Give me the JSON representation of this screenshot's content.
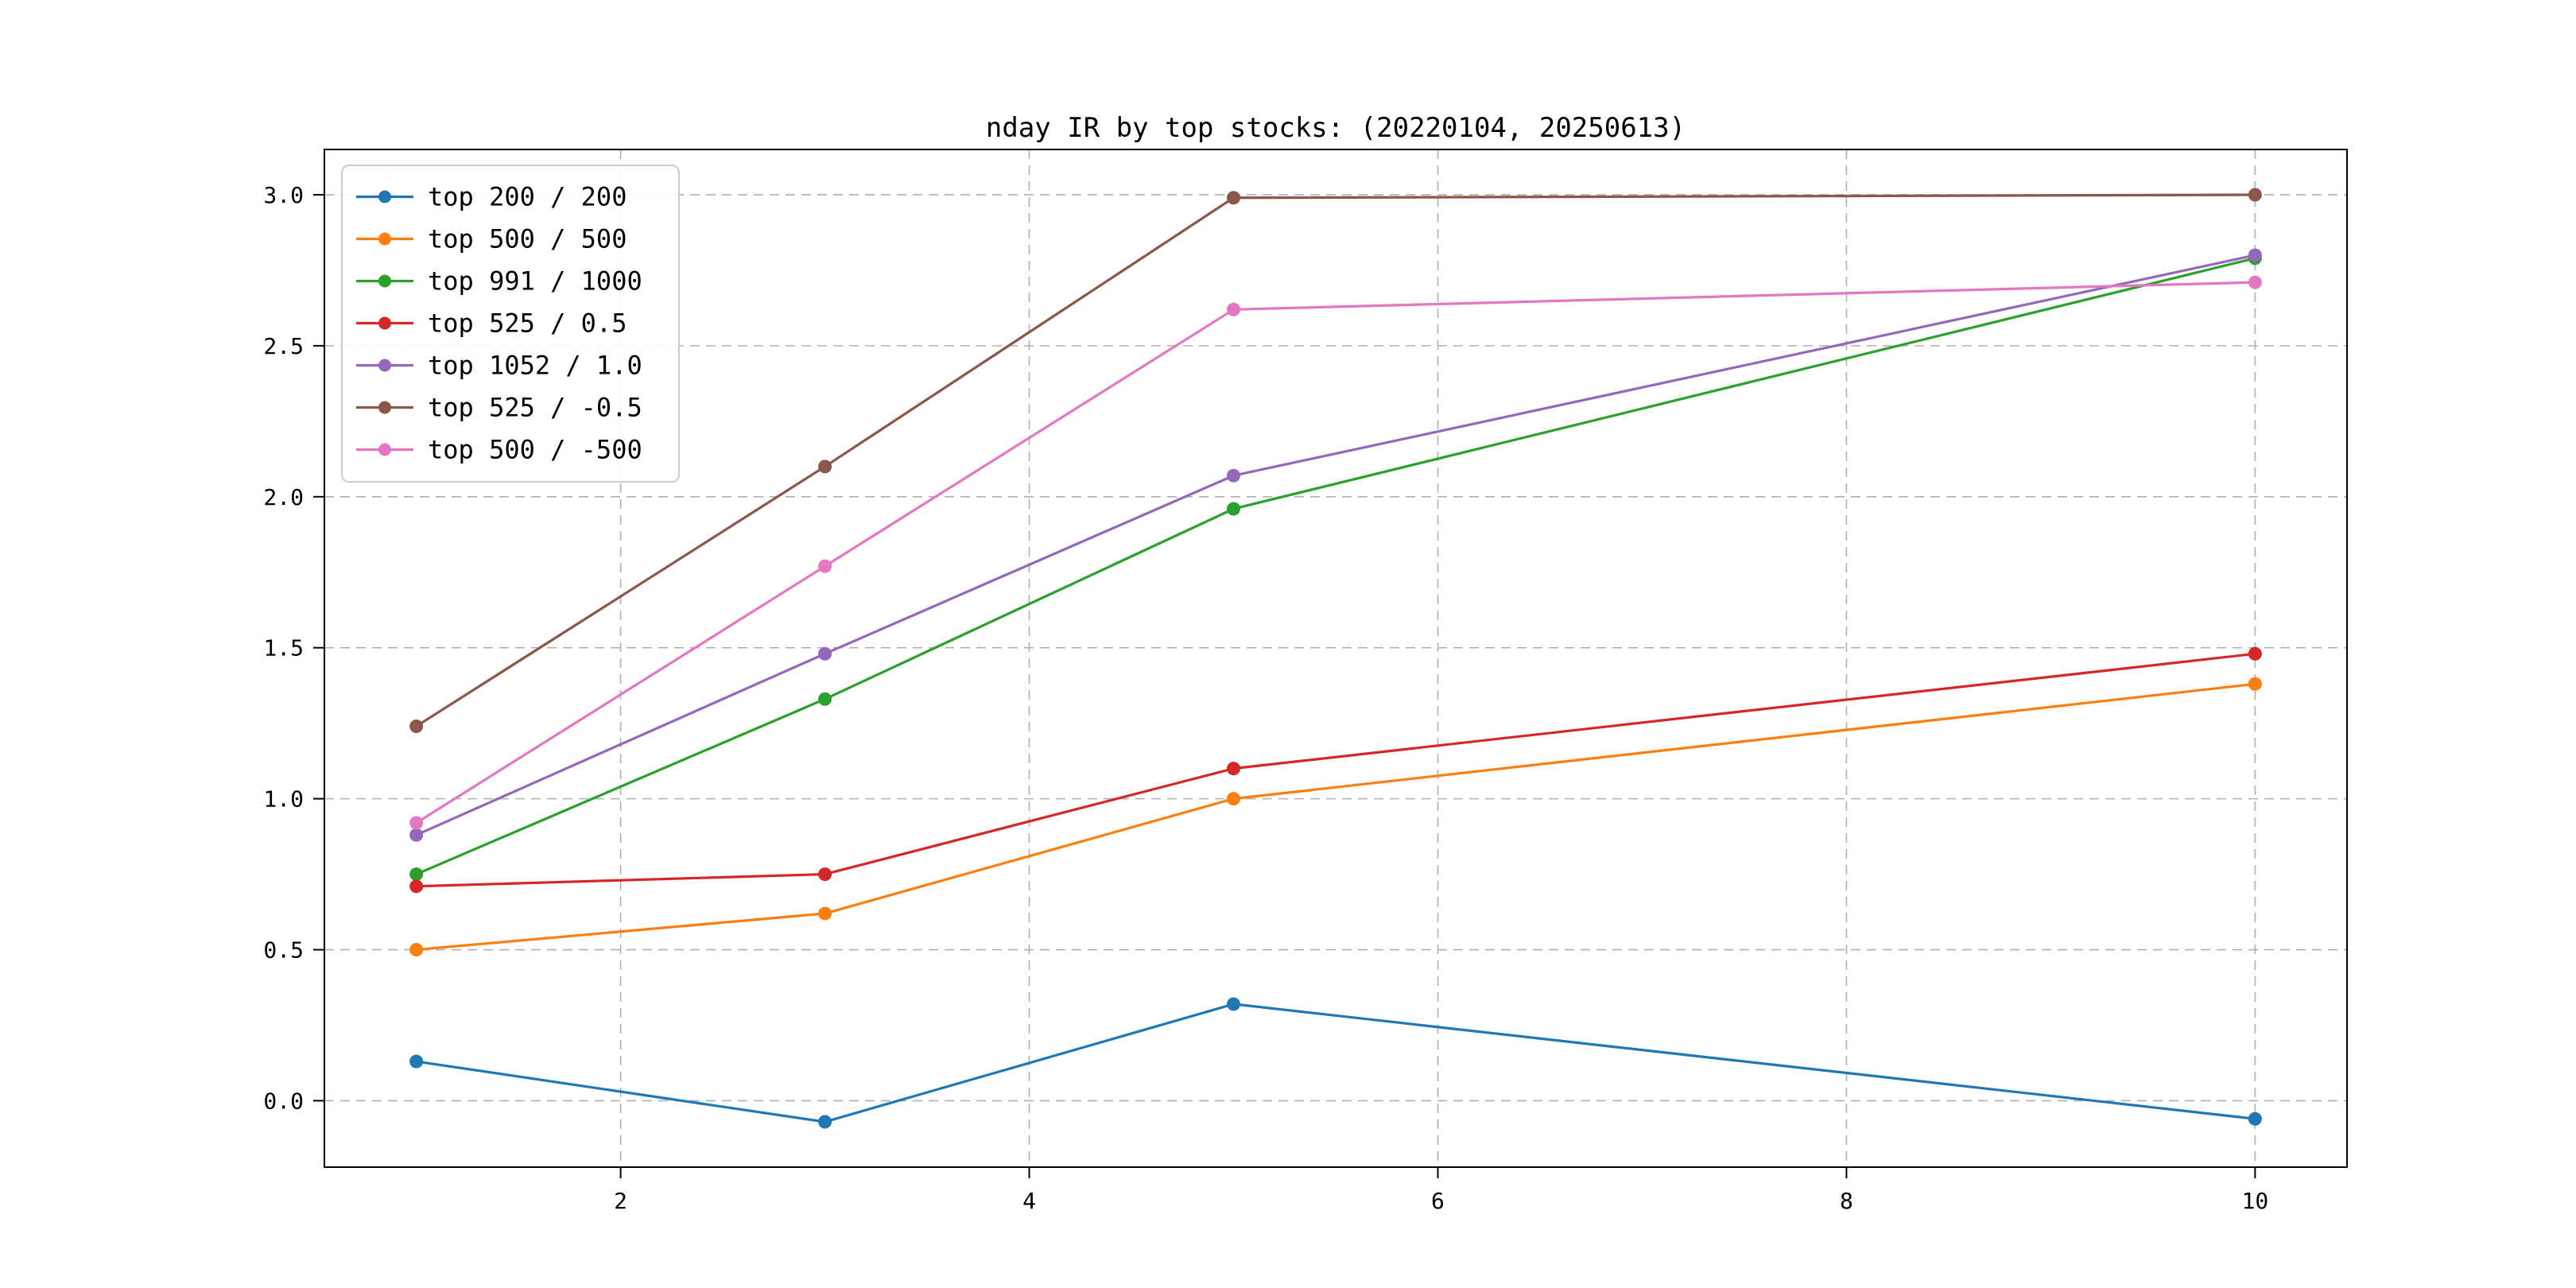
{
  "chart_data": {
    "type": "line",
    "title": "nday IR by top stocks: (20220104, 20250613)",
    "xlabel": "",
    "ylabel": "",
    "x": [
      1,
      3,
      5,
      10
    ],
    "series": [
      {
        "name": "top 200 / 200",
        "color": "#1f77b4",
        "values": [
          0.13,
          -0.07,
          0.32,
          -0.06
        ]
      },
      {
        "name": "top 500 / 500",
        "color": "#ff7f0e",
        "values": [
          0.5,
          0.62,
          1.0,
          1.38
        ]
      },
      {
        "name": "top 991 / 1000",
        "color": "#2ca02c",
        "values": [
          0.75,
          1.33,
          1.96,
          2.79
        ]
      },
      {
        "name": "top 525 / 0.5",
        "color": "#d62728",
        "values": [
          0.71,
          0.75,
          1.1,
          1.48
        ]
      },
      {
        "name": "top 1052 / 1.0",
        "color": "#9467bd",
        "values": [
          0.88,
          1.48,
          2.07,
          2.8
        ]
      },
      {
        "name": "top 525 / -0.5",
        "color": "#8c564b",
        "values": [
          1.24,
          2.1,
          2.99,
          3.0
        ]
      },
      {
        "name": "top 500 / -500",
        "color": "#e377c2",
        "values": [
          0.92,
          1.77,
          2.62,
          2.71
        ]
      }
    ],
    "xticks": {
      "values": [
        2,
        4,
        6,
        8,
        10
      ],
      "labels": [
        "2",
        "4",
        "6",
        "8",
        "10"
      ]
    },
    "yticks": {
      "values": [
        0.0,
        0.5,
        1.0,
        1.5,
        2.0,
        2.5,
        3.0
      ],
      "labels": [
        "0.0",
        "0.5",
        "1.0",
        "1.5",
        "2.0",
        "2.5",
        "3.0"
      ]
    },
    "xlim": [
      0.55,
      10.45
    ],
    "ylim": [
      -0.22,
      3.15
    ],
    "grid": "dashed",
    "grid_color": "#b0b0b0",
    "legend_position": "upper left",
    "marker": "o",
    "background": "#ffffff"
  }
}
